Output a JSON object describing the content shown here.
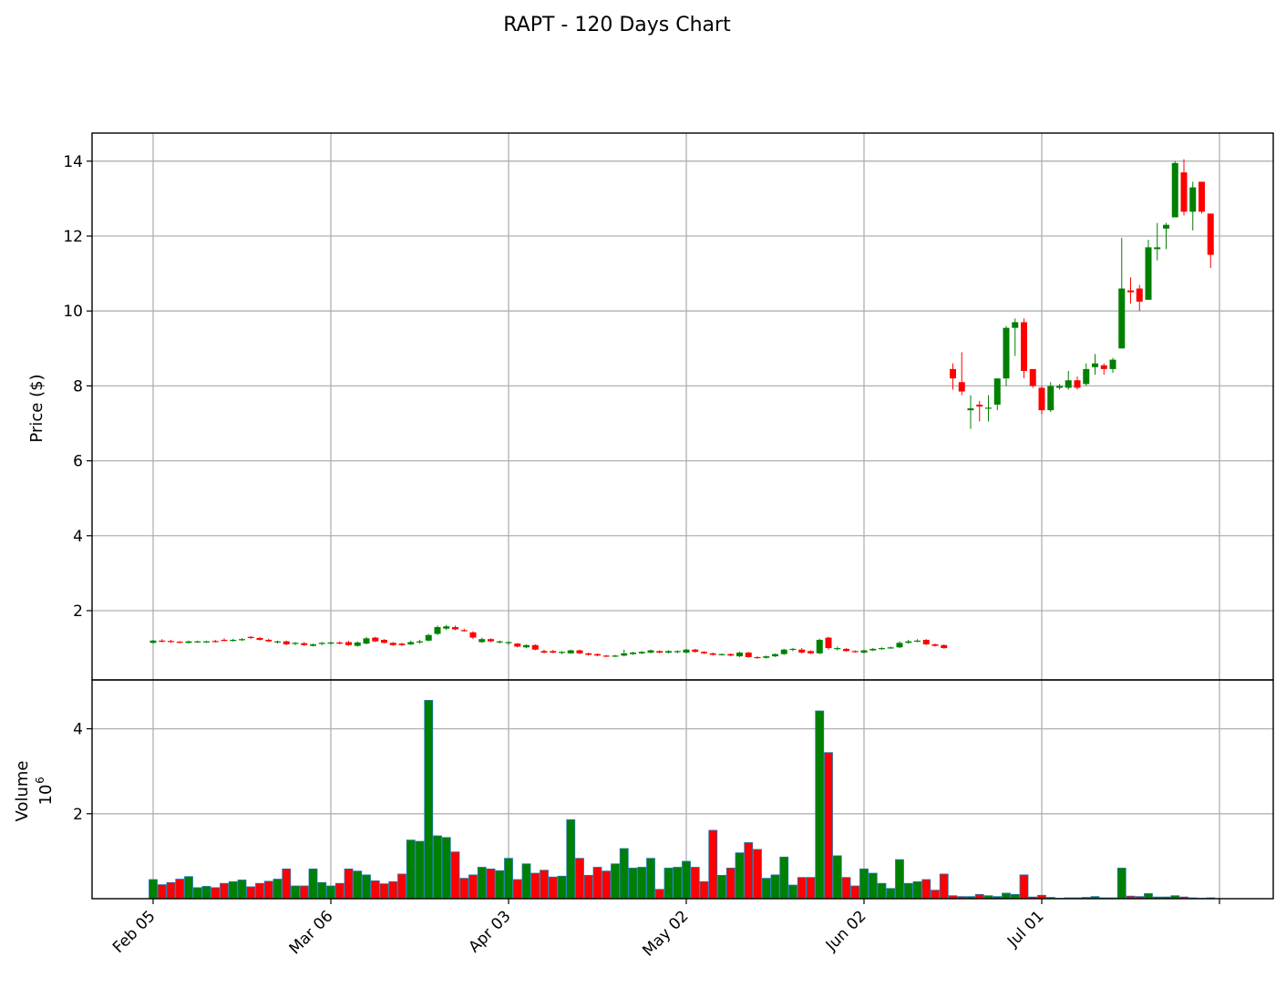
{
  "chart_data": {
    "type": "candlestick",
    "title": "RAPT - 120 Days Chart",
    "ylabel": "Price ($)",
    "volume_label": "Volume",
    "volume_multiplier": "10",
    "volume_exponent": "6",
    "x_tick_labels": [
      "Feb 05",
      "Mar 06",
      "Apr 03",
      "May 02",
      "Jun 02",
      "Jul 01"
    ],
    "x_tick_indices": [
      0,
      20,
      40,
      60,
      80,
      100,
      120
    ],
    "price_ticks": [
      2,
      4,
      6,
      8,
      10,
      12,
      14
    ],
    "price_ylim": [
      0.15,
      14.75
    ],
    "volume_ticks": [
      2,
      4
    ],
    "volume_ylim": [
      0,
      5.15
    ],
    "grid": true,
    "up_color": "#008000",
    "down_color": "#ff0000",
    "edge_color": "#1f77b4",
    "candles": [
      {
        "date": "Feb 05",
        "o": 1.14,
        "h": 1.22,
        "l": 1.12,
        "c": 1.2,
        "v": 0.45
      },
      {
        "date": "Feb 06",
        "o": 1.2,
        "h": 1.24,
        "l": 1.15,
        "c": 1.18,
        "v": 0.33
      },
      {
        "date": "Feb 07",
        "o": 1.19,
        "h": 1.22,
        "l": 1.14,
        "c": 1.17,
        "v": 0.38
      },
      {
        "date": "Feb 08",
        "o": 1.17,
        "h": 1.19,
        "l": 1.13,
        "c": 1.15,
        "v": 0.46
      },
      {
        "date": "Feb 09",
        "o": 1.14,
        "h": 1.2,
        "l": 1.12,
        "c": 1.18,
        "v": 0.52
      },
      {
        "date": "Feb 12",
        "o": 1.17,
        "h": 1.2,
        "l": 1.14,
        "c": 1.18,
        "v": 0.26
      },
      {
        "date": "Feb 13",
        "o": 1.17,
        "h": 1.2,
        "l": 1.14,
        "c": 1.18,
        "v": 0.29
      },
      {
        "date": "Feb 14",
        "o": 1.19,
        "h": 1.22,
        "l": 1.15,
        "c": 1.17,
        "v": 0.26
      },
      {
        "date": "Feb 15",
        "o": 1.22,
        "h": 1.26,
        "l": 1.18,
        "c": 1.2,
        "v": 0.36
      },
      {
        "date": "Feb 16",
        "o": 1.2,
        "h": 1.25,
        "l": 1.17,
        "c": 1.22,
        "v": 0.4
      },
      {
        "date": "Feb 20",
        "o": 1.21,
        "h": 1.27,
        "l": 1.19,
        "c": 1.24,
        "v": 0.44
      },
      {
        "date": "Feb 21",
        "o": 1.3,
        "h": 1.32,
        "l": 1.24,
        "c": 1.27,
        "v": 0.28
      },
      {
        "date": "Feb 22",
        "o": 1.27,
        "h": 1.3,
        "l": 1.2,
        "c": 1.22,
        "v": 0.36
      },
      {
        "date": "Feb 23",
        "o": 1.22,
        "h": 1.25,
        "l": 1.16,
        "c": 1.18,
        "v": 0.41
      },
      {
        "date": "Feb 26",
        "o": 1.16,
        "h": 1.2,
        "l": 1.12,
        "c": 1.18,
        "v": 0.46
      },
      {
        "date": "Feb 27",
        "o": 1.18,
        "h": 1.2,
        "l": 1.08,
        "c": 1.1,
        "v": 0.7
      },
      {
        "date": "Feb 28",
        "o": 1.12,
        "h": 1.16,
        "l": 1.08,
        "c": 1.14,
        "v": 0.3
      },
      {
        "date": "Feb 29",
        "o": 1.13,
        "h": 1.16,
        "l": 1.06,
        "c": 1.08,
        "v": 0.3
      },
      {
        "date": "Mar 01",
        "o": 1.06,
        "h": 1.12,
        "l": 1.04,
        "c": 1.1,
        "v": 0.7
      },
      {
        "date": "Mar 04",
        "o": 1.12,
        "h": 1.16,
        "l": 1.08,
        "c": 1.14,
        "v": 0.38
      },
      {
        "date": "Mar 06",
        "o": 1.12,
        "h": 1.17,
        "l": 1.09,
        "c": 1.15,
        "v": 0.3
      },
      {
        "date": "Mar 07",
        "o": 1.15,
        "h": 1.18,
        "l": 1.1,
        "c": 1.12,
        "v": 0.36
      },
      {
        "date": "Mar 08",
        "o": 1.16,
        "h": 1.19,
        "l": 1.06,
        "c": 1.08,
        "v": 0.7
      },
      {
        "date": "Mar 11",
        "o": 1.06,
        "h": 1.18,
        "l": 1.04,
        "c": 1.15,
        "v": 0.65
      },
      {
        "date": "Mar 12",
        "o": 1.12,
        "h": 1.3,
        "l": 1.1,
        "c": 1.26,
        "v": 0.56
      },
      {
        "date": "Mar 13",
        "o": 1.28,
        "h": 1.3,
        "l": 1.16,
        "c": 1.18,
        "v": 0.42
      },
      {
        "date": "Mar 14",
        "o": 1.22,
        "h": 1.24,
        "l": 1.12,
        "c": 1.14,
        "v": 0.35
      },
      {
        "date": "Mar 15",
        "o": 1.14,
        "h": 1.16,
        "l": 1.06,
        "c": 1.08,
        "v": 0.4
      },
      {
        "date": "Mar 18",
        "o": 1.12,
        "h": 1.14,
        "l": 1.06,
        "c": 1.08,
        "v": 0.58
      },
      {
        "date": "Mar 19",
        "o": 1.1,
        "h": 1.2,
        "l": 1.08,
        "c": 1.16,
        "v": 1.38
      },
      {
        "date": "Mar 20",
        "o": 1.15,
        "h": 1.22,
        "l": 1.12,
        "c": 1.18,
        "v": 1.35
      },
      {
        "date": "Mar 21",
        "o": 1.2,
        "h": 1.38,
        "l": 1.18,
        "c": 1.35,
        "v": 4.67
      },
      {
        "date": "Mar 22",
        "o": 1.38,
        "h": 1.6,
        "l": 1.35,
        "c": 1.56,
        "v": 1.48
      },
      {
        "date": "Mar 25",
        "o": 1.52,
        "h": 1.62,
        "l": 1.48,
        "c": 1.58,
        "v": 1.44
      },
      {
        "date": "Mar 26",
        "o": 1.56,
        "h": 1.6,
        "l": 1.48,
        "c": 1.5,
        "v": 1.1
      },
      {
        "date": "Mar 27",
        "o": 1.48,
        "h": 1.52,
        "l": 1.44,
        "c": 1.46,
        "v": 0.48
      },
      {
        "date": "Mar 28",
        "o": 1.42,
        "h": 1.45,
        "l": 1.24,
        "c": 1.28,
        "v": 0.56
      },
      {
        "date": "Mar 29",
        "o": 1.16,
        "h": 1.28,
        "l": 1.14,
        "c": 1.24,
        "v": 0.74
      },
      {
        "date": "Apr 01",
        "o": 1.24,
        "h": 1.26,
        "l": 1.16,
        "c": 1.18,
        "v": 0.7
      },
      {
        "date": "Apr 02",
        "o": 1.15,
        "h": 1.2,
        "l": 1.12,
        "c": 1.18,
        "v": 0.66
      },
      {
        "date": "Apr 03",
        "o": 1.14,
        "h": 1.18,
        "l": 1.08,
        "c": 1.16,
        "v": 0.95
      },
      {
        "date": "Apr 04",
        "o": 1.12,
        "h": 1.14,
        "l": 1.02,
        "c": 1.04,
        "v": 0.45
      },
      {
        "date": "Apr 05",
        "o": 1.02,
        "h": 1.1,
        "l": 1.0,
        "c": 1.08,
        "v": 0.82
      },
      {
        "date": "Apr 08",
        "o": 1.08,
        "h": 1.1,
        "l": 0.94,
        "c": 0.96,
        "v": 0.6
      },
      {
        "date": "Apr 09",
        "o": 0.92,
        "h": 0.96,
        "l": 0.86,
        "c": 0.88,
        "v": 0.67
      },
      {
        "date": "Apr 10",
        "o": 0.92,
        "h": 0.95,
        "l": 0.86,
        "c": 0.88,
        "v": 0.51
      },
      {
        "date": "Apr 11",
        "o": 0.88,
        "h": 0.92,
        "l": 0.84,
        "c": 0.9,
        "v": 0.53
      },
      {
        "date": "Apr 12",
        "o": 0.86,
        "h": 0.96,
        "l": 0.85,
        "c": 0.94,
        "v": 1.86
      },
      {
        "date": "Apr 15",
        "o": 0.94,
        "h": 0.96,
        "l": 0.84,
        "c": 0.86,
        "v": 0.95
      },
      {
        "date": "Apr 16",
        "o": 0.86,
        "h": 0.88,
        "l": 0.8,
        "c": 0.82,
        "v": 0.55
      },
      {
        "date": "Apr 17",
        "o": 0.84,
        "h": 0.86,
        "l": 0.78,
        "c": 0.8,
        "v": 0.74
      },
      {
        "date": "Apr 18",
        "o": 0.8,
        "h": 0.82,
        "l": 0.76,
        "c": 0.78,
        "v": 0.65
      },
      {
        "date": "Apr 19",
        "o": 0.78,
        "h": 0.82,
        "l": 0.76,
        "c": 0.8,
        "v": 0.82
      },
      {
        "date": "Apr 22",
        "o": 0.8,
        "h": 0.96,
        "l": 0.78,
        "c": 0.86,
        "v": 1.18
      },
      {
        "date": "Apr 23",
        "o": 0.84,
        "h": 0.9,
        "l": 0.82,
        "c": 0.88,
        "v": 0.72
      },
      {
        "date": "Apr 24",
        "o": 0.86,
        "h": 0.92,
        "l": 0.84,
        "c": 0.9,
        "v": 0.74
      },
      {
        "date": "Apr 25",
        "o": 0.88,
        "h": 0.96,
        "l": 0.86,
        "c": 0.94,
        "v": 0.95
      },
      {
        "date": "Apr 26",
        "o": 0.92,
        "h": 0.94,
        "l": 0.86,
        "c": 0.88,
        "v": 0.22
      },
      {
        "date": "Apr 29",
        "o": 0.88,
        "h": 0.94,
        "l": 0.86,
        "c": 0.92,
        "v": 0.72
      },
      {
        "date": "Apr 30",
        "o": 0.9,
        "h": 0.94,
        "l": 0.86,
        "c": 0.92,
        "v": 0.74
      },
      {
        "date": "May 01",
        "o": 0.88,
        "h": 0.98,
        "l": 0.86,
        "c": 0.96,
        "v": 0.88
      },
      {
        "date": "May 02",
        "o": 0.96,
        "h": 0.98,
        "l": 0.88,
        "c": 0.9,
        "v": 0.74
      },
      {
        "date": "May 03",
        "o": 0.9,
        "h": 0.92,
        "l": 0.84,
        "c": 0.86,
        "v": 0.4
      },
      {
        "date": "May 06",
        "o": 0.86,
        "h": 0.88,
        "l": 0.8,
        "c": 0.82,
        "v": 1.61
      },
      {
        "date": "May 07",
        "o": 0.82,
        "h": 0.86,
        "l": 0.8,
        "c": 0.84,
        "v": 0.55
      },
      {
        "date": "May 08",
        "o": 0.84,
        "h": 0.86,
        "l": 0.78,
        "c": 0.8,
        "v": 0.72
      },
      {
        "date": "May 09",
        "o": 0.78,
        "h": 0.9,
        "l": 0.76,
        "c": 0.88,
        "v": 1.08
      },
      {
        "date": "May 10",
        "o": 0.88,
        "h": 0.9,
        "l": 0.74,
        "c": 0.76,
        "v": 1.32
      },
      {
        "date": "May 13",
        "o": 0.76,
        "h": 0.78,
        "l": 0.72,
        "c": 0.74,
        "v": 1.16
      },
      {
        "date": "May 14",
        "o": 0.74,
        "h": 0.8,
        "l": 0.72,
        "c": 0.78,
        "v": 0.48
      },
      {
        "date": "May 15",
        "o": 0.78,
        "h": 0.86,
        "l": 0.76,
        "c": 0.84,
        "v": 0.56
      },
      {
        "date": "May 16",
        "o": 0.84,
        "h": 0.98,
        "l": 0.82,
        "c": 0.96,
        "v": 0.98
      },
      {
        "date": "May 17",
        "o": 0.96,
        "h": 1.0,
        "l": 0.92,
        "c": 0.98,
        "v": 0.32
      },
      {
        "date": "May 20",
        "o": 0.96,
        "h": 1.0,
        "l": 0.86,
        "c": 0.88,
        "v": 0.5
      },
      {
        "date": "May 21",
        "o": 0.92,
        "h": 0.94,
        "l": 0.84,
        "c": 0.86,
        "v": 0.5
      },
      {
        "date": "May 22",
        "o": 0.86,
        "h": 1.25,
        "l": 0.84,
        "c": 1.22,
        "v": 4.42
      },
      {
        "date": "May 23",
        "o": 1.28,
        "h": 1.3,
        "l": 0.96,
        "c": 1.0,
        "v": 3.44
      },
      {
        "date": "May 24",
        "o": 0.98,
        "h": 1.04,
        "l": 0.94,
        "c": 1.0,
        "v": 1.01
      },
      {
        "date": "May 28",
        "o": 0.98,
        "h": 1.0,
        "l": 0.9,
        "c": 0.92,
        "v": 0.5
      },
      {
        "date": "May 29",
        "o": 0.92,
        "h": 0.94,
        "l": 0.88,
        "c": 0.9,
        "v": 0.3
      },
      {
        "date": "May 30",
        "o": 0.88,
        "h": 0.96,
        "l": 0.86,
        "c": 0.94,
        "v": 0.7
      },
      {
        "date": "Jun 03",
        "o": 0.94,
        "h": 1.0,
        "l": 0.92,
        "c": 0.98,
        "v": 0.6
      },
      {
        "date": "Jun 04",
        "o": 0.98,
        "h": 1.02,
        "l": 0.96,
        "c": 1.0,
        "v": 0.36
      },
      {
        "date": "Jun 05",
        "o": 1.0,
        "h": 1.04,
        "l": 0.98,
        "c": 1.02,
        "v": 0.24
      },
      {
        "date": "Jun 06",
        "o": 1.02,
        "h": 1.18,
        "l": 1.0,
        "c": 1.14,
        "v": 0.92
      },
      {
        "date": "Jun 07",
        "o": 1.14,
        "h": 1.22,
        "l": 1.12,
        "c": 1.18,
        "v": 0.36
      },
      {
        "date": "Jun 10",
        "o": 1.18,
        "h": 1.24,
        "l": 1.16,
        "c": 1.2,
        "v": 0.4
      },
      {
        "date": "Jun 11",
        "o": 1.22,
        "h": 1.24,
        "l": 1.08,
        "c": 1.1,
        "v": 0.45
      },
      {
        "date": "Jun 12",
        "o": 1.1,
        "h": 1.12,
        "l": 1.04,
        "c": 1.06,
        "v": 0.2
      },
      {
        "date": "Jun 13",
        "o": 1.08,
        "h": 1.1,
        "l": 0.98,
        "c": 1.0,
        "v": 0.58
      },
      {
        "date": "Jun 14",
        "o": 8.45,
        "h": 8.6,
        "l": 7.9,
        "c": 8.2,
        "v": 0.07
      },
      {
        "date": "Jun 17",
        "o": 8.1,
        "h": 8.9,
        "l": 7.75,
        "c": 7.85,
        "v": 0.05
      },
      {
        "date": "Jun 18",
        "o": 7.35,
        "h": 7.75,
        "l": 6.85,
        "c": 7.4,
        "v": 0.05
      },
      {
        "date": "Jun 20",
        "o": 7.5,
        "h": 7.6,
        "l": 7.05,
        "c": 7.45,
        "v": 0.1
      },
      {
        "date": "Jun 21",
        "o": 7.4,
        "h": 7.75,
        "l": 7.05,
        "c": 7.42,
        "v": 0.07
      },
      {
        "date": "Jun 24",
        "o": 7.5,
        "h": 8.2,
        "l": 7.35,
        "c": 8.2,
        "v": 0.05
      },
      {
        "date": "Jun 25",
        "o": 8.2,
        "h": 9.6,
        "l": 8.0,
        "c": 9.55,
        "v": 0.13
      },
      {
        "date": "Jun 26",
        "o": 9.55,
        "h": 9.8,
        "l": 8.8,
        "c": 9.7,
        "v": 0.1
      },
      {
        "date": "Jun 27",
        "o": 9.7,
        "h": 9.8,
        "l": 8.2,
        "c": 8.4,
        "v": 0.56
      },
      {
        "date": "Jun 28",
        "o": 8.45,
        "h": 8.45,
        "l": 7.95,
        "c": 8.0,
        "v": 0.04
      },
      {
        "date": "Jul 01",
        "o": 7.95,
        "h": 8.0,
        "l": 7.25,
        "c": 7.35,
        "v": 0.08
      },
      {
        "date": "Jul 02",
        "o": 7.35,
        "h": 8.1,
        "l": 7.3,
        "c": 8.0,
        "v": 0.03
      },
      {
        "date": "Jul 03",
        "o": 7.95,
        "h": 8.05,
        "l": 7.9,
        "c": 8.0,
        "v": 0.01
      },
      {
        "date": "Jul 05",
        "o": 7.95,
        "h": 8.4,
        "l": 7.9,
        "c": 8.15,
        "v": 0.02
      },
      {
        "date": "Jul 08",
        "o": 8.15,
        "h": 8.25,
        "l": 7.9,
        "c": 7.95,
        "v": 0.02
      },
      {
        "date": "Jul 09",
        "o": 8.05,
        "h": 8.6,
        "l": 8.0,
        "c": 8.45,
        "v": 0.03
      },
      {
        "date": "Jul 10",
        "o": 8.5,
        "h": 8.85,
        "l": 8.3,
        "c": 8.6,
        "v": 0.05
      },
      {
        "date": "Jul 11",
        "o": 8.55,
        "h": 8.6,
        "l": 8.3,
        "c": 8.45,
        "v": 0.02
      },
      {
        "date": "Jul 12",
        "o": 8.45,
        "h": 8.75,
        "l": 8.35,
        "c": 8.7,
        "v": 0.02
      },
      {
        "date": "Jul 15",
        "o": 9.0,
        "h": 11.95,
        "l": 9.0,
        "c": 10.6,
        "v": 0.72
      },
      {
        "date": "Jul 16",
        "o": 10.55,
        "h": 10.9,
        "l": 10.2,
        "c": 10.5,
        "v": 0.06
      },
      {
        "date": "Jul 17",
        "o": 10.6,
        "h": 10.7,
        "l": 10.0,
        "c": 10.25,
        "v": 0.05
      },
      {
        "date": "Jul 18",
        "o": 10.3,
        "h": 11.9,
        "l": 10.3,
        "c": 11.7,
        "v": 0.12
      },
      {
        "date": "Jul 19",
        "o": 11.65,
        "h": 12.35,
        "l": 11.35,
        "c": 11.7,
        "v": 0.04
      },
      {
        "date": "Jul 22",
        "o": 12.2,
        "h": 12.35,
        "l": 11.65,
        "c": 12.3,
        "v": 0.04
      },
      {
        "date": "Jul 23",
        "o": 12.5,
        "h": 14.0,
        "l": 12.5,
        "c": 13.95,
        "v": 0.07
      },
      {
        "date": "Jul 24",
        "o": 13.7,
        "h": 14.05,
        "l": 12.55,
        "c": 12.65,
        "v": 0.04
      },
      {
        "date": "Jul 25",
        "o": 12.65,
        "h": 13.45,
        "l": 12.15,
        "c": 13.3,
        "v": 0.02
      },
      {
        "date": "Jul 26",
        "o": 13.45,
        "h": 13.45,
        "l": 12.6,
        "c": 12.65,
        "v": 0.01
      },
      {
        "date": "Jul 29",
        "o": 12.6,
        "h": 12.6,
        "l": 11.15,
        "c": 11.5,
        "v": 0.02
      }
    ]
  }
}
